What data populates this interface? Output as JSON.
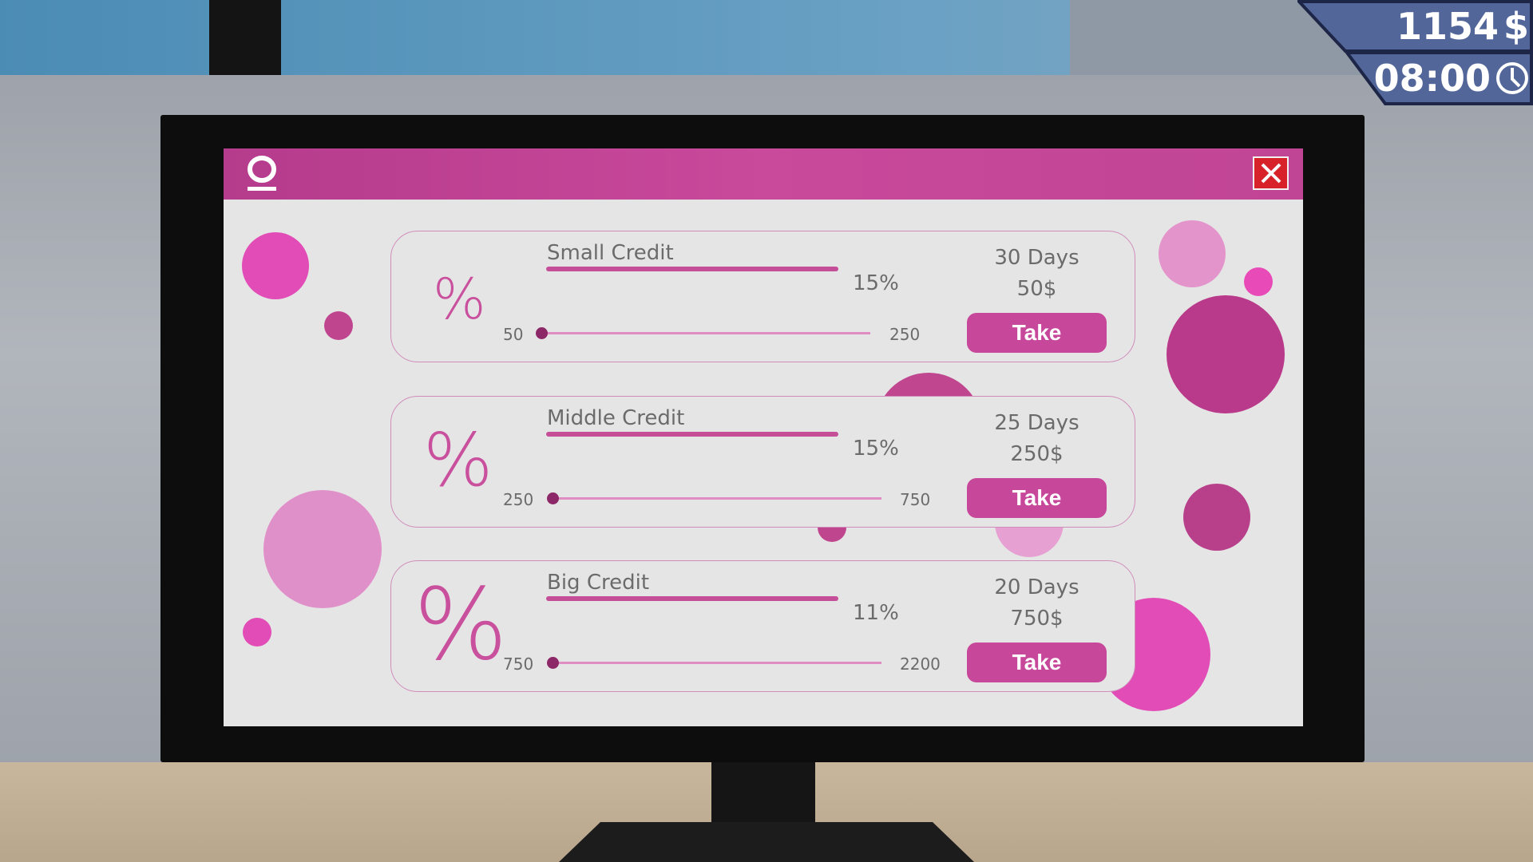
{
  "hud": {
    "money": "1154",
    "currency_icon": "dollar-icon",
    "currency": "$",
    "time": "08:00",
    "clock_icon": "clock-icon",
    "bg_color": "#52669a"
  },
  "app": {
    "logo": "o-logo",
    "accent": "#c4479a",
    "close_color": "#d8222a"
  },
  "credits": [
    {
      "title": "Small Credit",
      "rate": "15%",
      "min": "50",
      "max": "250",
      "slider_value": 50,
      "days": "30 Days",
      "amount": "50$",
      "button": "Take"
    },
    {
      "title": "Middle Credit",
      "rate": "15%",
      "min": "250",
      "max": "750",
      "slider_value": 250,
      "days": "25 Days",
      "amount": "250$",
      "button": "Take"
    },
    {
      "title": "Big Credit",
      "rate": "11%",
      "min": "750",
      "max": "2200",
      "slider_value": 750,
      "days": "20 Days",
      "amount": "750$",
      "button": "Take"
    }
  ]
}
